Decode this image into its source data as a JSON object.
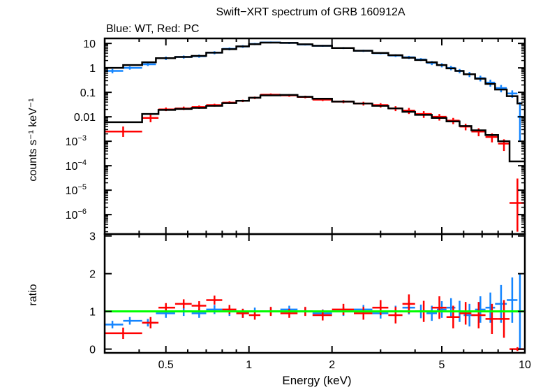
{
  "chart_data": [
    {
      "type": "scatter",
      "panel": "spectrum",
      "title": "Swift−XRT spectrum of GRB 160912A",
      "subtitle": "Blue: WT, Red: PC",
      "xlabel": "Energy (keV)",
      "ylabel": "counts s⁻¹ keV⁻¹",
      "xscale": "log",
      "yscale": "log",
      "xlim": [
        0.3,
        10
      ],
      "ylim": [
        1.6e-07,
        16
      ],
      "yticks": [
        {
          "value": 10,
          "base": "10",
          "exp": ""
        },
        {
          "value": 1,
          "base": "1",
          "exp": ""
        },
        {
          "value": 0.1,
          "base": "0.1",
          "exp": ""
        },
        {
          "value": 0.01,
          "base": "0.01",
          "exp": ""
        },
        {
          "value": 0.001,
          "base": "10",
          "exp": "−3"
        },
        {
          "value": 0.0001,
          "base": "10",
          "exp": "−4"
        },
        {
          "value": 1e-05,
          "base": "10",
          "exp": "−5"
        },
        {
          "value": 1e-06,
          "base": "10",
          "exp": "−6"
        }
      ],
      "series": [
        {
          "label": "WT",
          "color": "#1485ff",
          "columns": [
            "energy",
            "energy_lo",
            "energy_hi",
            "rate",
            "rate_lo",
            "rate_hi"
          ],
          "points": [
            [
              0.32,
              0.3,
              0.35,
              0.75,
              0.6,
              0.9
            ],
            [
              0.37,
              0.35,
              0.41,
              1.0,
              0.85,
              1.15
            ],
            [
              0.43,
              0.41,
              0.46,
              1.4,
              1.2,
              1.6
            ],
            [
              0.5,
              0.46,
              0.54,
              2.5,
              2.1,
              2.9
            ],
            [
              0.58,
              0.54,
              0.62,
              2.8,
              2.4,
              3.2
            ],
            [
              0.66,
              0.62,
              0.7,
              3.0,
              2.6,
              3.5
            ],
            [
              0.75,
              0.7,
              0.8,
              4.2,
              3.6,
              4.8
            ],
            [
              0.85,
              0.8,
              0.9,
              6,
              5.2,
              6.8
            ],
            [
              0.95,
              0.9,
              1.0,
              7.5,
              6.6,
              8.5
            ],
            [
              1.05,
              1.0,
              1.1,
              9.5,
              8.5,
              10.5
            ],
            [
              1.2,
              1.1,
              1.3,
              11,
              10,
              12
            ],
            [
              1.4,
              1.3,
              1.5,
              10.5,
              9.5,
              11.5
            ],
            [
              1.6,
              1.5,
              1.7,
              9,
              8.2,
              9.8
            ],
            [
              1.85,
              1.7,
              2.0,
              8,
              7.3,
              8.7
            ],
            [
              2.2,
              2.0,
              2.4,
              6.5,
              5.9,
              7.1
            ],
            [
              2.6,
              2.4,
              2.8,
              5,
              4.5,
              5.5
            ],
            [
              3.0,
              2.8,
              3.2,
              4,
              3.6,
              4.4
            ],
            [
              3.4,
              3.2,
              3.6,
              3.2,
              2.8,
              3.6
            ],
            [
              3.8,
              3.6,
              4.0,
              2.7,
              2.3,
              3.1
            ],
            [
              4.2,
              4.0,
              4.4,
              2.2,
              1.9,
              2.5
            ],
            [
              4.6,
              4.4,
              4.8,
              1.6,
              1.3,
              1.9
            ],
            [
              5.0,
              4.8,
              5.2,
              1.3,
              1.05,
              1.55
            ],
            [
              5.4,
              5.2,
              5.6,
              1.0,
              0.8,
              1.2
            ],
            [
              5.8,
              5.6,
              6.0,
              0.75,
              0.6,
              0.9
            ],
            [
              6.3,
              6.0,
              6.6,
              0.55,
              0.42,
              0.68
            ],
            [
              6.9,
              6.6,
              7.2,
              0.38,
              0.28,
              0.48
            ],
            [
              7.5,
              7.2,
              7.8,
              0.25,
              0.17,
              0.33
            ],
            [
              8.2,
              7.8,
              8.6,
              0.15,
              0.1,
              0.2
            ],
            [
              9.0,
              8.6,
              9.4,
              0.09,
              0.06,
              0.12
            ],
            [
              9.6,
              9.4,
              9.8,
              0.01,
              0.001,
              0.04
            ]
          ],
          "model": [
            1.0,
            1.3,
            1.7,
            2.5,
            2.8,
            3.1,
            4.2,
            5.8,
            7.6,
            9.3,
            10.8,
            10.5,
            9.2,
            8.0,
            6.5,
            5.0,
            4.1,
            3.3,
            2.6,
            2.1,
            1.7,
            1.3,
            0.95,
            0.75,
            0.55,
            0.36,
            0.22,
            0.13,
            0.07,
            0.035
          ]
        },
        {
          "label": "PC",
          "color": "#ff0000",
          "columns": [
            "energy",
            "energy_lo",
            "energy_hi",
            "rate",
            "rate_lo",
            "rate_hi"
          ],
          "points": [
            [
              0.35,
              0.3,
              0.41,
              0.0025,
              0.0015,
              0.004
            ],
            [
              0.44,
              0.41,
              0.47,
              0.009,
              0.006,
              0.012
            ],
            [
              0.5,
              0.47,
              0.54,
              0.02,
              0.017,
              0.024
            ],
            [
              0.58,
              0.54,
              0.62,
              0.022,
              0.019,
              0.026
            ],
            [
              0.66,
              0.62,
              0.7,
              0.025,
              0.021,
              0.029
            ],
            [
              0.75,
              0.7,
              0.8,
              0.03,
              0.026,
              0.034
            ],
            [
              0.85,
              0.8,
              0.9,
              0.038,
              0.033,
              0.043
            ],
            [
              0.95,
              0.9,
              1.0,
              0.045,
              0.04,
              0.05
            ],
            [
              1.05,
              1.0,
              1.1,
              0.06,
              0.053,
              0.067
            ],
            [
              1.2,
              1.1,
              1.3,
              0.08,
              0.07,
              0.09
            ],
            [
              1.4,
              1.3,
              1.5,
              0.075,
              0.066,
              0.084
            ],
            [
              1.6,
              1.5,
              1.7,
              0.065,
              0.057,
              0.073
            ],
            [
              1.85,
              1.7,
              2.0,
              0.05,
              0.044,
              0.056
            ],
            [
              2.2,
              2.0,
              2.4,
              0.042,
              0.036,
              0.048
            ],
            [
              2.6,
              2.4,
              2.8,
              0.035,
              0.029,
              0.041
            ],
            [
              3.0,
              2.8,
              3.2,
              0.03,
              0.024,
              0.036
            ],
            [
              3.4,
              3.2,
              3.6,
              0.022,
              0.017,
              0.027
            ],
            [
              3.8,
              3.6,
              4.0,
              0.018,
              0.013,
              0.023
            ],
            [
              4.3,
              4.0,
              4.6,
              0.013,
              0.009,
              0.017
            ],
            [
              4.9,
              4.6,
              5.2,
              0.01,
              0.007,
              0.013
            ],
            [
              5.5,
              5.2,
              5.8,
              0.007,
              0.005,
              0.009
            ],
            [
              6.1,
              5.8,
              6.4,
              0.004,
              0.0028,
              0.0052
            ],
            [
              6.8,
              6.4,
              7.2,
              0.0025,
              0.0016,
              0.0034
            ],
            [
              7.6,
              7.2,
              8.0,
              0.0015,
              0.0009,
              0.0021
            ],
            [
              8.4,
              8.0,
              8.8,
              0.0008,
              0.0004,
              0.0012
            ],
            [
              9.4,
              8.8,
              10,
              3e-06,
              2e-07,
              3e-05
            ]
          ],
          "model": [
            0.006,
            0.013,
            0.019,
            0.021,
            0.023,
            0.028,
            0.036,
            0.045,
            0.06,
            0.075,
            0.078,
            0.066,
            0.055,
            0.042,
            0.035,
            0.028,
            0.022,
            0.016,
            0.012,
            0.009,
            0.0065,
            0.0042,
            0.0028,
            0.0018,
            0.001,
            0.00015
          ]
        }
      ],
      "model_color": "#000000"
    },
    {
      "type": "scatter",
      "panel": "ratio",
      "xlabel": "Energy (keV)",
      "ylabel": "ratio",
      "xscale": "log",
      "xlim": [
        0.3,
        10
      ],
      "ylim": [
        -0.1,
        3.05
      ],
      "xticks": [
        {
          "value": 0.5,
          "label": "0.5"
        },
        {
          "value": 1,
          "label": "1"
        },
        {
          "value": 2,
          "label": "2"
        },
        {
          "value": 5,
          "label": "5"
        },
        {
          "value": 10,
          "label": "10"
        }
      ],
      "yticks": [
        {
          "value": 0,
          "label": "0"
        },
        {
          "value": 1,
          "label": "1"
        },
        {
          "value": 2,
          "label": "2"
        },
        {
          "value": 3,
          "label": "3"
        }
      ],
      "reference_line": {
        "value": 1,
        "color": "#00ff00"
      },
      "series": [
        {
          "label": "WT",
          "color": "#1485ff",
          "columns": [
            "ratio",
            "ratio_err"
          ],
          "values": [
            [
              0.65,
              0.1
            ],
            [
              0.75,
              0.1
            ],
            [
              0.7,
              0.1
            ],
            [
              0.95,
              0.12
            ],
            [
              1.0,
              0.12
            ],
            [
              0.95,
              0.12
            ],
            [
              1.05,
              0.12
            ],
            [
              1.0,
              0.12
            ],
            [
              0.95,
              0.12
            ],
            [
              1.0,
              0.1
            ],
            [
              1.0,
              0.1
            ],
            [
              1.05,
              0.1
            ],
            [
              1.0,
              0.1
            ],
            [
              0.95,
              0.1
            ],
            [
              1.0,
              0.12
            ],
            [
              1.05,
              0.12
            ],
            [
              0.95,
              0.14
            ],
            [
              1.0,
              0.15
            ],
            [
              1.1,
              0.18
            ],
            [
              1.0,
              0.18
            ],
            [
              0.95,
              0.2
            ],
            [
              1.05,
              0.22
            ],
            [
              1.1,
              0.25
            ],
            [
              1.0,
              0.28
            ],
            [
              0.9,
              0.3
            ],
            [
              1.05,
              0.35
            ],
            [
              1.1,
              0.4
            ],
            [
              1.2,
              0.5
            ],
            [
              1.3,
              0.6
            ],
            [
              1.0,
              1.0
            ]
          ]
        },
        {
          "label": "PC",
          "color": "#ff0000",
          "columns": [
            "ratio",
            "ratio_err"
          ],
          "values": [
            [
              0.42,
              0.15
            ],
            [
              0.7,
              0.15
            ],
            [
              1.1,
              0.12
            ],
            [
              1.2,
              0.12
            ],
            [
              1.15,
              0.12
            ],
            [
              1.3,
              0.12
            ],
            [
              1.05,
              0.12
            ],
            [
              0.95,
              0.12
            ],
            [
              0.9,
              0.12
            ],
            [
              1.0,
              0.12
            ],
            [
              0.95,
              0.12
            ],
            [
              1.0,
              0.12
            ],
            [
              0.9,
              0.14
            ],
            [
              1.05,
              0.15
            ],
            [
              0.95,
              0.17
            ],
            [
              1.1,
              0.2
            ],
            [
              0.9,
              0.22
            ],
            [
              1.2,
              0.25
            ],
            [
              1.0,
              0.28
            ],
            [
              1.1,
              0.3
            ],
            [
              0.85,
              0.3
            ],
            [
              0.95,
              0.3
            ],
            [
              0.9,
              0.35
            ],
            [
              0.8,
              0.4
            ],
            [
              0.8,
              0.5
            ],
            [
              0.0,
              0.05
            ]
          ]
        }
      ]
    }
  ]
}
